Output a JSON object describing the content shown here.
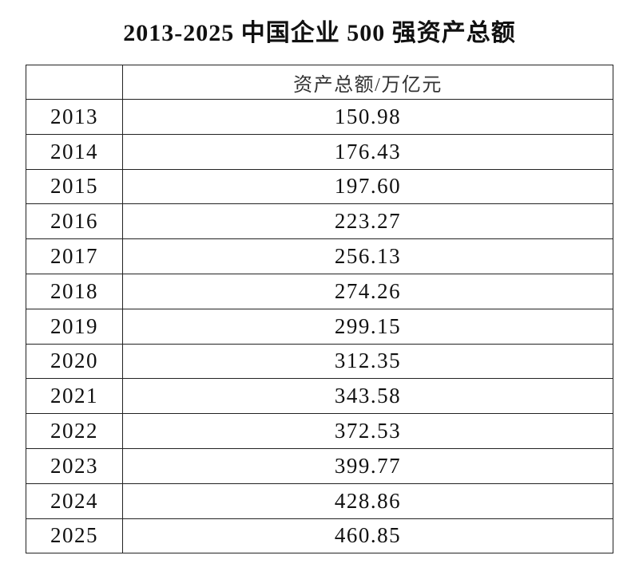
{
  "header": {
    "title": "2013-2025 中国企业 500 强资产总额"
  },
  "table": {
    "columns": [
      "资产总额/万亿元"
    ],
    "rows": [
      [
        "2013",
        "150.98"
      ],
      [
        "2014",
        "176.43"
      ],
      [
        "2015",
        "197.60"
      ],
      [
        "2016",
        "223.27"
      ],
      [
        "2017",
        "256.13"
      ],
      [
        "2018",
        "274.26"
      ],
      [
        "2019",
        "299.15"
      ],
      [
        "2020",
        "312.35"
      ],
      [
        "2021",
        "343.58"
      ],
      [
        "2022",
        "372.53"
      ],
      [
        "2023",
        "399.77"
      ],
      [
        "2024",
        "428.86"
      ],
      [
        "2025",
        "460.85"
      ]
    ]
  }
}
